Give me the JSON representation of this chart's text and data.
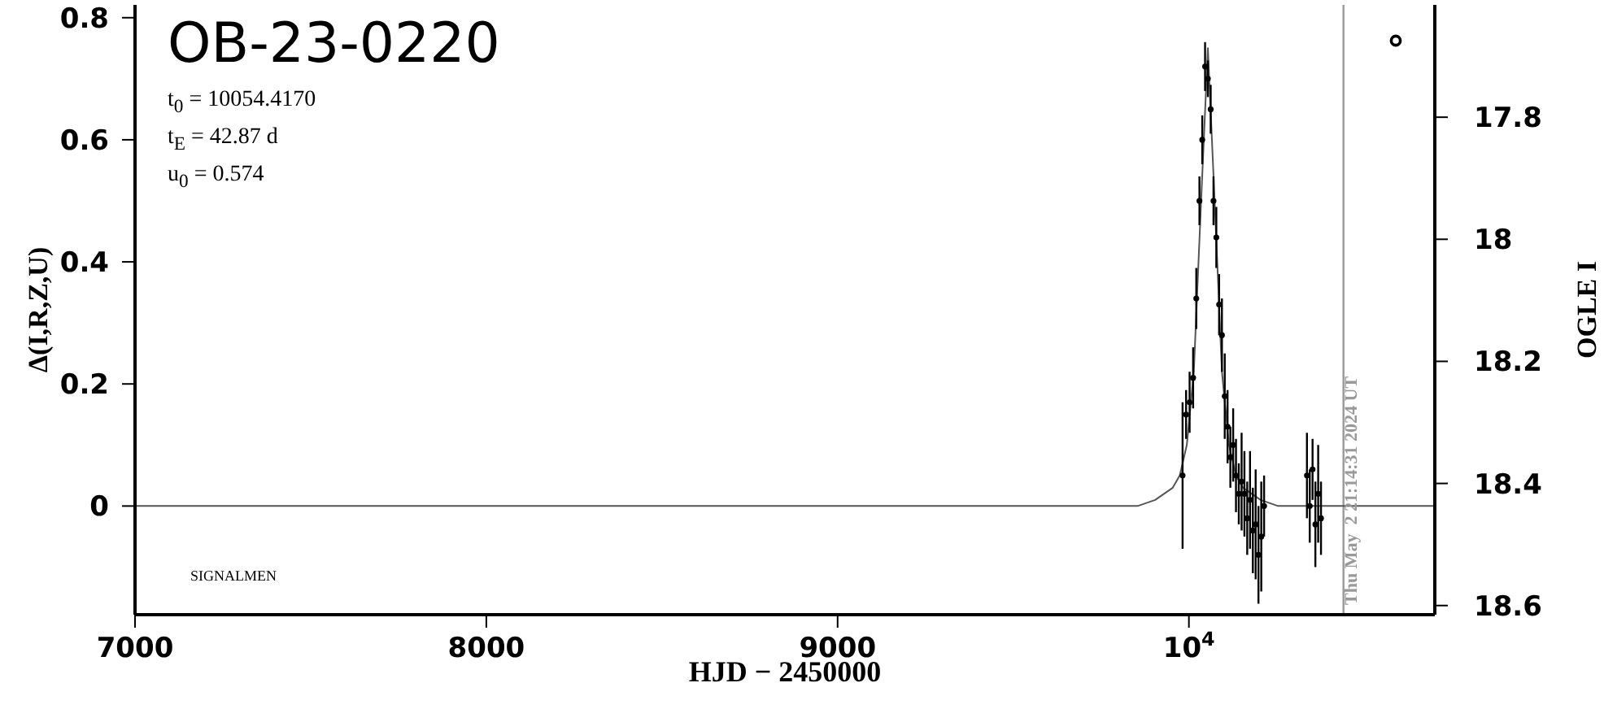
{
  "chart_data": {
    "type": "scatter",
    "xlabel": "HJD − 2450000",
    "ylabel": "Δ(I,R,Z,U)",
    "y2label": "OGLE I",
    "xlim": [
      7000,
      10700
    ],
    "xticks": [
      7000,
      8000,
      9000,
      {
        "value": 10000,
        "label": "10$^{4}$"
      }
    ],
    "ylim": [
      -0.178,
      0.821
    ],
    "yticks": [
      0,
      0.2,
      0.4,
      0.6,
      0.8
    ],
    "y2lim": [
      18.615,
      17.616
    ],
    "y2ticks": [
      17.8,
      18,
      18.2,
      18.4,
      18.6
    ],
    "grid": false,
    "annotations": [
      "OB-23-0220",
      "t$_{0}$ = 10054.4170",
      "t$_{E}$ = 42.87 d",
      "u$_{0}$ = 0.574",
      "SIGNALMEN",
      "Thu May  2 21:14:31 2024 UT"
    ],
    "ref_lines": [
      {
        "axis": "x",
        "value": 10440,
        "color": "#999999"
      }
    ],
    "series": [
      {
        "type": "line",
        "marker": "none",
        "color": "#555555",
        "x": [
          7000,
          9754,
          9854,
          9904,
          9954,
          9974,
          9994,
          10014,
          10034,
          10054,
          10074,
          10094,
          10114,
          10134,
          10154,
          10204,
          10254,
          10354,
          10700
        ],
        "values": [
          0,
          0,
          0,
          0.01,
          0.03,
          0.05,
          0.1,
          0.22,
          0.49,
          0.75,
          0.49,
          0.22,
          0.1,
          0.05,
          0.03,
          0.01,
          0,
          0,
          0
        ]
      },
      {
        "marker": "circle",
        "color": "#000000",
        "x": [
          9982,
          9992,
          10002,
          10012,
          10021,
          10030,
          10038,
          10046,
          10054,
          10062,
          10070,
          10078,
          10086,
          10094,
          10102,
          10110,
          10118,
          10126,
          10134,
          10142,
          10150,
          10158,
          10166,
          10174,
          10182,
          10190,
          10198,
          10206,
          10214,
          10336,
          10344,
          10352,
          10360,
          10368,
          10376
        ],
        "values": [
          0.05,
          0.15,
          0.17,
          0.21,
          0.34,
          0.5,
          0.6,
          0.72,
          0.7,
          0.65,
          0.5,
          0.44,
          0.33,
          0.28,
          0.18,
          0.13,
          0.08,
          0.1,
          0.05,
          0.02,
          0.04,
          0.02,
          -0.02,
          0.01,
          -0.04,
          -0.03,
          -0.08,
          -0.05,
          0,
          0.05,
          0,
          0.06,
          -0.03,
          0.02,
          -0.02
        ],
        "errors": [
          0.12,
          0.04,
          0.05,
          0.05,
          0.05,
          0.04,
          0.04,
          0.04,
          0.03,
          0.04,
          0.04,
          0.05,
          0.05,
          0.06,
          0.07,
          0.06,
          0.05,
          0.06,
          0.06,
          0.05,
          0.08,
          0.07,
          0.06,
          0.08,
          0.07,
          0.09,
          0.08,
          0.09,
          0.05,
          0.07,
          0.06,
          0.05,
          0.07,
          0.08,
          0.06
        ]
      }
    ]
  }
}
